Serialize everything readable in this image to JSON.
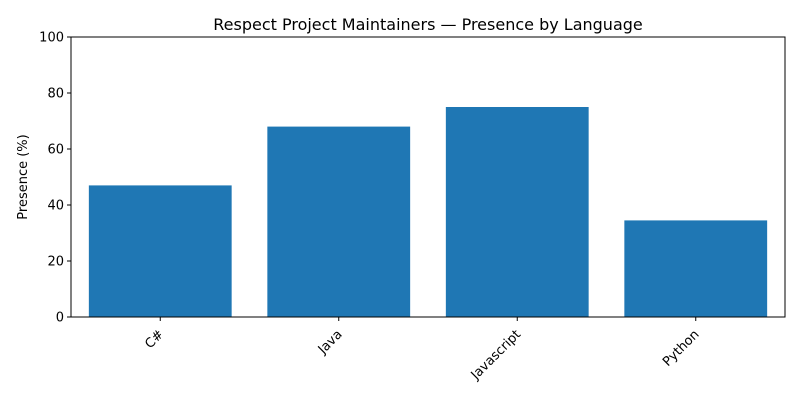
{
  "chart_data": {
    "type": "bar",
    "title": "Respect Project Maintainers — Presence by Language",
    "xlabel": "",
    "ylabel": "Presence (%)",
    "categories": [
      "C#",
      "Java",
      "Javascript",
      "Python"
    ],
    "values": [
      47,
      68,
      75,
      34.5
    ],
    "ylim": [
      0,
      100
    ],
    "yticks": [
      0,
      20,
      40,
      60,
      80,
      100
    ],
    "bar_color": "#1f77b4",
    "grid": false,
    "legend": "none"
  }
}
